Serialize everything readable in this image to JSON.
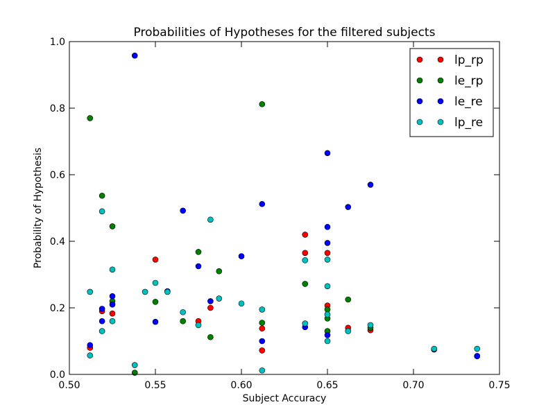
{
  "chart_data": {
    "type": "scatter",
    "title": "Probabilities of Hypotheses for the filtered subjects",
    "xlabel": "Subject Accuracy",
    "ylabel": "Probability of Hypothesis",
    "xlim": [
      0.5,
      0.75
    ],
    "ylim": [
      0.0,
      1.0
    ],
    "xticks": [
      "0.50",
      "0.55",
      "0.60",
      "0.65",
      "0.70",
      "0.75"
    ],
    "yticks": [
      "0.0",
      "0.2",
      "0.4",
      "0.6",
      "0.8",
      "1.0"
    ],
    "grid": false,
    "legend": "top-right",
    "series": [
      {
        "name": "lp_rp",
        "color": "#ff0000",
        "points": [
          [
            0.512,
            0.08
          ],
          [
            0.519,
            0.19
          ],
          [
            0.525,
            0.183
          ],
          [
            0.55,
            0.345
          ],
          [
            0.575,
            0.16
          ],
          [
            0.582,
            0.2
          ],
          [
            0.612,
            0.138
          ],
          [
            0.612,
            0.072
          ],
          [
            0.637,
            0.42
          ],
          [
            0.637,
            0.365
          ],
          [
            0.65,
            0.365
          ],
          [
            0.65,
            0.207
          ],
          [
            0.662,
            0.14
          ],
          [
            0.675,
            0.133
          ],
          [
            0.712,
            0.075
          ],
          [
            0.737,
            0.055
          ]
        ]
      },
      {
        "name": "le_rp",
        "color": "#008000",
        "points": [
          [
            0.512,
            0.77
          ],
          [
            0.519,
            0.537
          ],
          [
            0.525,
            0.445
          ],
          [
            0.525,
            0.22
          ],
          [
            0.538,
            0.005
          ],
          [
            0.55,
            0.218
          ],
          [
            0.566,
            0.16
          ],
          [
            0.575,
            0.368
          ],
          [
            0.582,
            0.112
          ],
          [
            0.587,
            0.31
          ],
          [
            0.612,
            0.812
          ],
          [
            0.612,
            0.155
          ],
          [
            0.637,
            0.272
          ],
          [
            0.65,
            0.195
          ],
          [
            0.65,
            0.168
          ],
          [
            0.65,
            0.13
          ],
          [
            0.662,
            0.225
          ],
          [
            0.675,
            0.14
          ],
          [
            0.712,
            0.075
          ],
          [
            0.737,
            0.055
          ]
        ]
      },
      {
        "name": "le_re",
        "color": "#0000ff",
        "points": [
          [
            0.512,
            0.088
          ],
          [
            0.519,
            0.197
          ],
          [
            0.519,
            0.16
          ],
          [
            0.525,
            0.235
          ],
          [
            0.525,
            0.21
          ],
          [
            0.538,
            0.958
          ],
          [
            0.55,
            0.158
          ],
          [
            0.557,
            0.25
          ],
          [
            0.566,
            0.492
          ],
          [
            0.575,
            0.325
          ],
          [
            0.582,
            0.22
          ],
          [
            0.6,
            0.355
          ],
          [
            0.612,
            0.512
          ],
          [
            0.612,
            0.1
          ],
          [
            0.637,
            0.142
          ],
          [
            0.65,
            0.665
          ],
          [
            0.65,
            0.443
          ],
          [
            0.65,
            0.395
          ],
          [
            0.65,
            0.118
          ],
          [
            0.662,
            0.503
          ],
          [
            0.675,
            0.57
          ],
          [
            0.712,
            0.075
          ],
          [
            0.737,
            0.055
          ]
        ]
      },
      {
        "name": "lp_re",
        "color": "#00bfbf",
        "points": [
          [
            0.512,
            0.248
          ],
          [
            0.512,
            0.057
          ],
          [
            0.519,
            0.49
          ],
          [
            0.519,
            0.13
          ],
          [
            0.525,
            0.315
          ],
          [
            0.525,
            0.16
          ],
          [
            0.538,
            0.028
          ],
          [
            0.544,
            0.248
          ],
          [
            0.55,
            0.275
          ],
          [
            0.557,
            0.248
          ],
          [
            0.566,
            0.187
          ],
          [
            0.575,
            0.148
          ],
          [
            0.582,
            0.465
          ],
          [
            0.587,
            0.228
          ],
          [
            0.6,
            0.213
          ],
          [
            0.612,
            0.195
          ],
          [
            0.612,
            0.012
          ],
          [
            0.637,
            0.343
          ],
          [
            0.637,
            0.153
          ],
          [
            0.65,
            0.345
          ],
          [
            0.65,
            0.265
          ],
          [
            0.65,
            0.18
          ],
          [
            0.65,
            0.1
          ],
          [
            0.662,
            0.13
          ],
          [
            0.675,
            0.148
          ],
          [
            0.712,
            0.077
          ],
          [
            0.737,
            0.077
          ]
        ]
      }
    ]
  }
}
